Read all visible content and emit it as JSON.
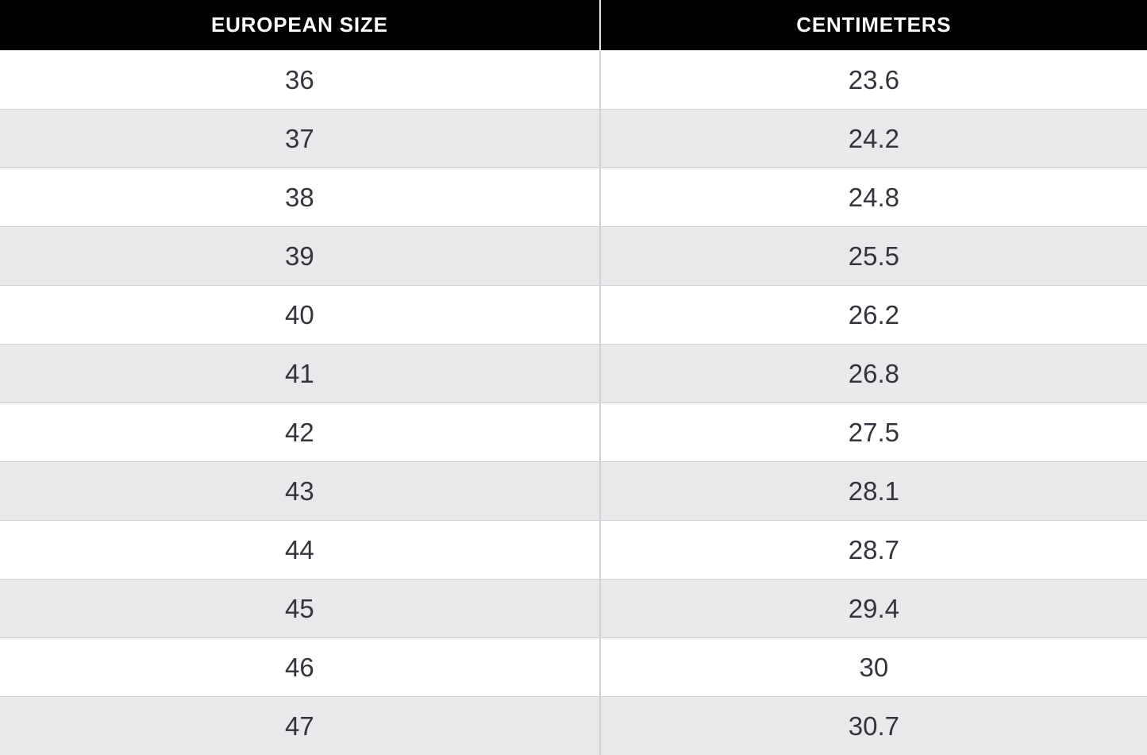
{
  "table": {
    "columns": [
      {
        "label": "EUROPEAN SIZE"
      },
      {
        "label": "CENTIMETERS"
      }
    ],
    "rows": [
      {
        "size": "36",
        "cm": "23.6"
      },
      {
        "size": "37",
        "cm": "24.2"
      },
      {
        "size": "38",
        "cm": "24.8"
      },
      {
        "size": "39",
        "cm": "25.5"
      },
      {
        "size": "40",
        "cm": "26.2"
      },
      {
        "size": "41",
        "cm": "26.8"
      },
      {
        "size": "42",
        "cm": "27.5"
      },
      {
        "size": "43",
        "cm": "28.1"
      },
      {
        "size": "44",
        "cm": "28.7"
      },
      {
        "size": "45",
        "cm": "29.4"
      },
      {
        "size": "46",
        "cm": "30"
      },
      {
        "size": "47",
        "cm": "30.7"
      }
    ]
  },
  "colors": {
    "header_bg": "#010101",
    "header_text": "#ffffff",
    "row_alt_bg": "#e9e8ea",
    "row_bg": "#ffffff",
    "border": "#d2d1d5",
    "cell_text": "#34343c"
  }
}
